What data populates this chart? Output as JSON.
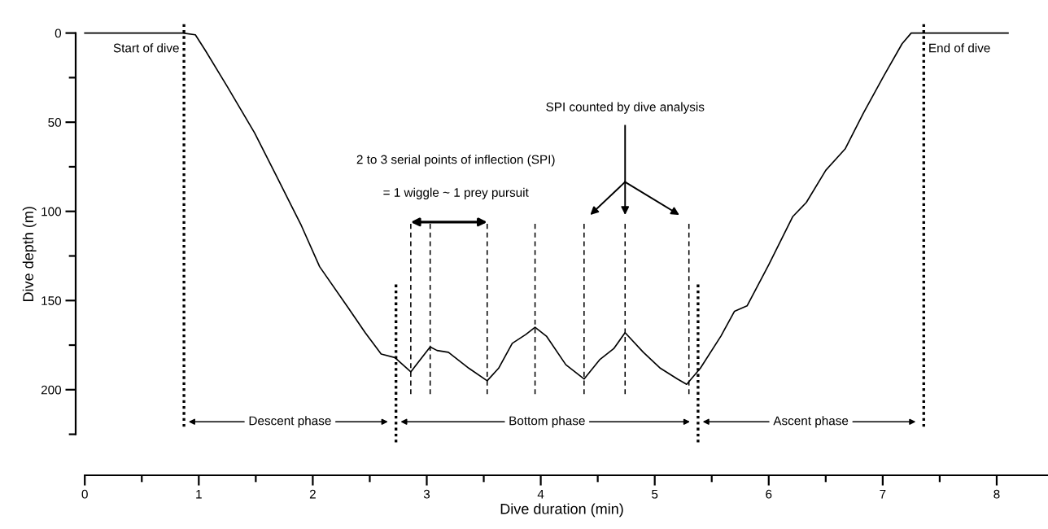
{
  "chart_data": {
    "type": "line",
    "xlabel": "Dive duration (min)",
    "ylabel": "Dive depth (m)",
    "xlim": [
      -0.08,
      8.45
    ],
    "ylim": [
      248,
      0
    ],
    "xticks": [
      0,
      {
        "value": 0.5,
        "label": null
      },
      1,
      {
        "value": 1.5,
        "label": null
      },
      2,
      {
        "value": 2.5,
        "label": null
      },
      3,
      {
        "value": 3.5,
        "label": null
      },
      4,
      {
        "value": 4.5,
        "label": null
      },
      5,
      {
        "value": 5.5,
        "label": null
      },
      6,
      {
        "value": 6.5,
        "label": null
      },
      7,
      {
        "value": 7.5,
        "label": null
      },
      8
    ],
    "yticks": [
      0,
      {
        "value": 25,
        "label": null
      },
      50,
      {
        "value": 75,
        "label": null
      },
      100,
      {
        "value": 125,
        "label": null
      },
      150,
      {
        "value": 175,
        "label": null
      },
      200,
      {
        "value": 225,
        "label": null
      }
    ],
    "grid": false,
    "marker": "none",
    "line_style": "solid",
    "series": [
      {
        "color": "#000000",
        "x": [
          0,
          0.3,
          0.5,
          0.86,
          0.97,
          1.06,
          1.25,
          1.49,
          1.68,
          1.9,
          2.06,
          2.31,
          2.46,
          2.6,
          2.72,
          2.86,
          3.03,
          3.09,
          3.19,
          3.37,
          3.53,
          3.63,
          3.75,
          3.87,
          3.95,
          4.05,
          4.22,
          4.38,
          4.52,
          4.64,
          4.74,
          4.9,
          5.05,
          5.2,
          5.28,
          5.4,
          5.58,
          5.7,
          5.81,
          6.0,
          6.21,
          6.33,
          6.5,
          6.67,
          6.83,
          7.01,
          7.17,
          7.25,
          7.36,
          7.7,
          8.1
        ],
        "values": [
          0,
          0,
          0,
          0,
          1,
          10,
          30,
          56,
          80,
          108,
          131,
          154,
          168,
          180,
          182,
          190,
          176,
          178,
          179,
          188,
          195,
          188,
          174,
          169,
          165,
          170,
          186,
          194,
          183,
          177,
          168,
          179,
          188,
          194,
          197,
          188,
          170,
          156,
          153,
          130,
          103,
          95,
          77,
          65,
          45,
          24,
          6,
          0,
          0,
          0,
          0
        ]
      }
    ],
    "ref_lines": [
      {
        "axis": "x",
        "value": 0.87,
        "label": "Start of dive",
        "line_style": "dotted",
        "color": "#000000"
      },
      {
        "axis": "x",
        "value": 2.73,
        "label": null,
        "line_style": "dotted",
        "color": "#000000"
      },
      {
        "axis": "x",
        "value": 5.38,
        "label": null,
        "line_style": "dotted",
        "color": "#000000"
      },
      {
        "axis": "x",
        "value": 7.36,
        "label": "End of dive",
        "line_style": "dotted",
        "color": "#000000"
      },
      {
        "axis": "x",
        "value": 2.86,
        "label": null,
        "line_style": "dashed",
        "color": "#000000"
      },
      {
        "axis": "x",
        "value": 3.03,
        "label": null,
        "line_style": "dashed",
        "color": "#000000"
      },
      {
        "axis": "x",
        "value": 3.53,
        "label": null,
        "line_style": "dashed",
        "color": "#000000"
      },
      {
        "axis": "x",
        "value": 3.95,
        "label": null,
        "line_style": "dashed",
        "color": "#000000"
      },
      {
        "axis": "x",
        "value": 4.38,
        "label": null,
        "line_style": "dashed",
        "color": "#000000"
      },
      {
        "axis": "x",
        "value": 4.74,
        "label": null,
        "line_style": "dashed",
        "color": "#000000"
      },
      {
        "axis": "x",
        "value": 5.3,
        "label": null,
        "line_style": "dashed",
        "color": "#000000"
      }
    ],
    "annotations": [
      "2 to 3 serial points of inflection (SPI)",
      "= 1 wiggle ~ 1 prey pursuit",
      "SPI counted by dive analysis",
      "Descent phase",
      "Bottom phase",
      "Ascent phase"
    ]
  }
}
